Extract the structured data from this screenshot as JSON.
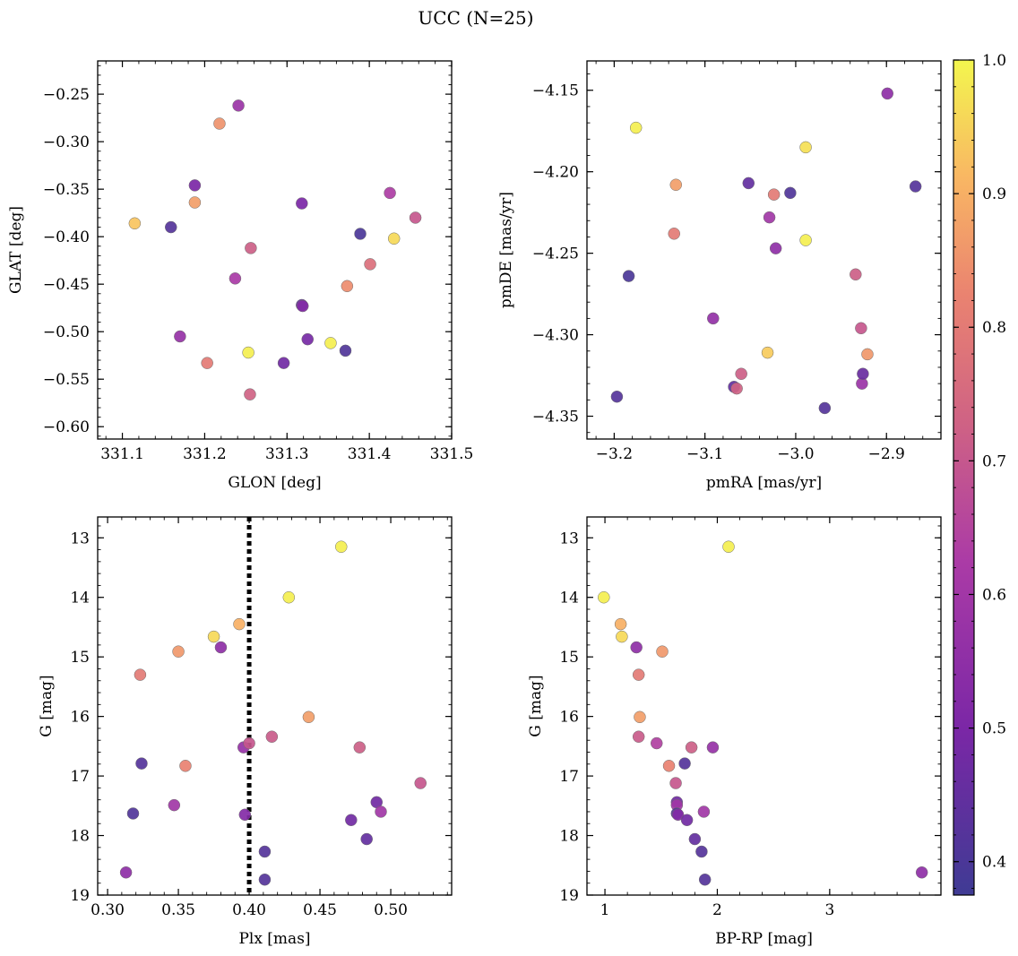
{
  "figure": {
    "title": "UCC (N=25)"
  },
  "chart_data": [
    {
      "type": "scatter",
      "xlabel": "GLON [deg]",
      "ylabel": "GLAT [deg]",
      "xlim": [
        331.07,
        331.5
      ],
      "ylim": [
        -0.613,
        -0.215
      ],
      "xticks": [
        331.1,
        331.2,
        331.3,
        331.4,
        331.5
      ],
      "xtick_labels": [
        "331.1",
        "331.2",
        "331.3",
        "331.4",
        "331.5"
      ],
      "yticks": [
        -0.6,
        -0.55,
        -0.5,
        -0.45,
        -0.4,
        -0.35,
        -0.3,
        -0.25
      ],
      "ytick_labels": [
        "−0.60",
        "−0.55",
        "−0.50",
        "−0.45",
        "−0.40",
        "−0.35",
        "−0.30",
        "−0.25"
      ],
      "x_inverted": false,
      "y_inverted": false,
      "points": [
        {
          "x": 331.115,
          "y": -0.386,
          "c": 0.93
        },
        {
          "x": 331.159,
          "y": -0.39,
          "c": 0.42
        },
        {
          "x": 331.17,
          "y": -0.505,
          "c": 0.57
        },
        {
          "x": 331.188,
          "y": -0.346,
          "c": 0.5
        },
        {
          "x": 331.188,
          "y": -0.364,
          "c": 0.87
        },
        {
          "x": 331.203,
          "y": -0.533,
          "c": 0.8
        },
        {
          "x": 331.218,
          "y": -0.281,
          "c": 0.85
        },
        {
          "x": 331.237,
          "y": -0.444,
          "c": 0.62
        },
        {
          "x": 331.241,
          "y": -0.262,
          "c": 0.58
        },
        {
          "x": 331.253,
          "y": -0.522,
          "c": 0.99
        },
        {
          "x": 331.255,
          "y": -0.566,
          "c": 0.73
        },
        {
          "x": 331.256,
          "y": -0.412,
          "c": 0.72
        },
        {
          "x": 331.296,
          "y": -0.533,
          "c": 0.48
        },
        {
          "x": 331.318,
          "y": -0.365,
          "c": 0.5
        },
        {
          "x": 331.318,
          "y": -0.472,
          "c": 0.45
        },
        {
          "x": 331.319,
          "y": -0.473,
          "c": 0.52
        },
        {
          "x": 331.325,
          "y": -0.508,
          "c": 0.49
        },
        {
          "x": 331.353,
          "y": -0.512,
          "c": 0.99
        },
        {
          "x": 331.371,
          "y": -0.52,
          "c": 0.41
        },
        {
          "x": 331.373,
          "y": -0.452,
          "c": 0.84
        },
        {
          "x": 331.389,
          "y": -0.397,
          "c": 0.4
        },
        {
          "x": 331.401,
          "y": -0.429,
          "c": 0.77
        },
        {
          "x": 331.425,
          "y": -0.354,
          "c": 0.63
        },
        {
          "x": 331.43,
          "y": -0.402,
          "c": 0.96
        },
        {
          "x": 331.456,
          "y": -0.38,
          "c": 0.7
        }
      ]
    },
    {
      "type": "scatter",
      "xlabel": "pmRA [mas/yr]",
      "ylabel": "pmDE [mas/yr]",
      "xlim": [
        -3.23,
        -2.84
      ],
      "ylim": [
        -4.364,
        -4.132
      ],
      "xticks": [
        -3.2,
        -3.1,
        -3.0,
        -2.9
      ],
      "xtick_labels": [
        "−3.2",
        "−3.1",
        "−3.0",
        "−2.9"
      ],
      "yticks": [
        -4.35,
        -4.3,
        -4.25,
        -4.2,
        -4.15
      ],
      "ytick_labels": [
        "−4.35",
        "−4.30",
        "−4.25",
        "−4.20",
        "−4.15"
      ],
      "x_inverted": false,
      "y_inverted": false,
      "points": [
        {
          "x": -3.197,
          "y": -4.338,
          "c": 0.42
        },
        {
          "x": -3.184,
          "y": -4.264,
          "c": 0.4
        },
        {
          "x": -3.176,
          "y": -4.173,
          "c": 0.99
        },
        {
          "x": -3.134,
          "y": -4.238,
          "c": 0.8
        },
        {
          "x": -3.132,
          "y": -4.208,
          "c": 0.87
        },
        {
          "x": -3.091,
          "y": -4.29,
          "c": 0.56
        },
        {
          "x": -3.068,
          "y": -4.332,
          "c": 0.45
        },
        {
          "x": -3.065,
          "y": -4.333,
          "c": 0.73
        },
        {
          "x": -3.06,
          "y": -4.324,
          "c": 0.72
        },
        {
          "x": -3.052,
          "y": -4.207,
          "c": 0.45
        },
        {
          "x": -3.031,
          "y": -4.311,
          "c": 0.94
        },
        {
          "x": -3.029,
          "y": -4.228,
          "c": 0.6
        },
        {
          "x": -3.024,
          "y": -4.214,
          "c": 0.8
        },
        {
          "x": -3.022,
          "y": -4.247,
          "c": 0.55
        },
        {
          "x": -3.006,
          "y": -4.213,
          "c": 0.41
        },
        {
          "x": -2.989,
          "y": -4.185,
          "c": 0.97
        },
        {
          "x": -2.989,
          "y": -4.242,
          "c": 0.99
        },
        {
          "x": -2.968,
          "y": -4.345,
          "c": 0.42
        },
        {
          "x": -2.934,
          "y": -4.263,
          "c": 0.72
        },
        {
          "x": -2.928,
          "y": -4.296,
          "c": 0.7
        },
        {
          "x": -2.927,
          "y": -4.33,
          "c": 0.58
        },
        {
          "x": -2.926,
          "y": -4.324,
          "c": 0.46
        },
        {
          "x": -2.921,
          "y": -4.312,
          "c": 0.86
        },
        {
          "x": -2.899,
          "y": -4.152,
          "c": 0.55
        },
        {
          "x": -2.868,
          "y": -4.209,
          "c": 0.42
        }
      ]
    },
    {
      "type": "scatter",
      "xlabel": "Plx [mas]",
      "ylabel": "G [mag]",
      "xlim": [
        0.293,
        0.543
      ],
      "ylim": [
        12.65,
        19.0
      ],
      "xticks": [
        0.3,
        0.35,
        0.4,
        0.45,
        0.5
      ],
      "xtick_labels": [
        "0.30",
        "0.35",
        "0.40",
        "0.45",
        "0.50"
      ],
      "yticks": [
        13,
        14,
        15,
        16,
        17,
        18,
        19
      ],
      "ytick_labels": [
        "13",
        "14",
        "15",
        "16",
        "17",
        "18",
        "19"
      ],
      "x_inverted": false,
      "y_inverted": true,
      "vline": {
        "x": 0.4,
        "style": "dotted"
      },
      "points": [
        {
          "x": 0.313,
          "y": 18.62,
          "c": 0.55
        },
        {
          "x": 0.318,
          "y": 17.63,
          "c": 0.41
        },
        {
          "x": 0.323,
          "y": 15.3,
          "c": 0.8
        },
        {
          "x": 0.324,
          "y": 16.79,
          "c": 0.42
        },
        {
          "x": 0.347,
          "y": 17.49,
          "c": 0.6
        },
        {
          "x": 0.35,
          "y": 14.91,
          "c": 0.86
        },
        {
          "x": 0.355,
          "y": 16.83,
          "c": 0.82
        },
        {
          "x": 0.375,
          "y": 14.66,
          "c": 0.96
        },
        {
          "x": 0.38,
          "y": 14.84,
          "c": 0.55
        },
        {
          "x": 0.393,
          "y": 14.45,
          "c": 0.9
        },
        {
          "x": 0.396,
          "y": 16.52,
          "c": 0.57
        },
        {
          "x": 0.397,
          "y": 17.65,
          "c": 0.52
        },
        {
          "x": 0.4,
          "y": 16.45,
          "c": 0.7
        },
        {
          "x": 0.411,
          "y": 18.27,
          "c": 0.42
        },
        {
          "x": 0.411,
          "y": 18.74,
          "c": 0.42
        },
        {
          "x": 0.416,
          "y": 16.34,
          "c": 0.71
        },
        {
          "x": 0.428,
          "y": 14.0,
          "c": 0.99
        },
        {
          "x": 0.442,
          "y": 16.01,
          "c": 0.87
        },
        {
          "x": 0.465,
          "y": 13.15,
          "c": 0.99
        },
        {
          "x": 0.472,
          "y": 17.74,
          "c": 0.48
        },
        {
          "x": 0.478,
          "y": 16.52,
          "c": 0.72
        },
        {
          "x": 0.483,
          "y": 18.06,
          "c": 0.45
        },
        {
          "x": 0.49,
          "y": 17.44,
          "c": 0.48
        },
        {
          "x": 0.493,
          "y": 17.6,
          "c": 0.6
        },
        {
          "x": 0.521,
          "y": 17.12,
          "c": 0.7
        }
      ]
    },
    {
      "type": "scatter",
      "xlabel": "BP-RP [mag]",
      "ylabel": "G [mag]",
      "xlim": [
        0.84,
        3.99
      ],
      "ylim": [
        12.65,
        19.0
      ],
      "xticks": [
        1,
        2,
        3
      ],
      "xtick_labels": [
        "1",
        "2",
        "3"
      ],
      "yticks": [
        13,
        14,
        15,
        16,
        17,
        18,
        19
      ],
      "ytick_labels": [
        "13",
        "14",
        "15",
        "16",
        "17",
        "18",
        "19"
      ],
      "x_inverted": false,
      "y_inverted": true,
      "points": [
        {
          "x": 0.99,
          "y": 14.0,
          "c": 0.99
        },
        {
          "x": 1.14,
          "y": 14.45,
          "c": 0.9
        },
        {
          "x": 1.15,
          "y": 14.66,
          "c": 0.96
        },
        {
          "x": 1.28,
          "y": 14.84,
          "c": 0.55
        },
        {
          "x": 1.3,
          "y": 15.3,
          "c": 0.8
        },
        {
          "x": 1.31,
          "y": 16.01,
          "c": 0.87
        },
        {
          "x": 1.3,
          "y": 16.34,
          "c": 0.71
        },
        {
          "x": 1.46,
          "y": 16.45,
          "c": 0.64
        },
        {
          "x": 1.51,
          "y": 14.91,
          "c": 0.86
        },
        {
          "x": 1.57,
          "y": 16.83,
          "c": 0.82
        },
        {
          "x": 1.63,
          "y": 17.12,
          "c": 0.7
        },
        {
          "x": 1.64,
          "y": 17.44,
          "c": 0.48
        },
        {
          "x": 1.64,
          "y": 17.49,
          "c": 0.6
        },
        {
          "x": 1.64,
          "y": 17.63,
          "c": 0.41
        },
        {
          "x": 1.65,
          "y": 17.65,
          "c": 0.52
        },
        {
          "x": 1.71,
          "y": 16.79,
          "c": 0.42
        },
        {
          "x": 1.73,
          "y": 17.74,
          "c": 0.48
        },
        {
          "x": 1.77,
          "y": 16.52,
          "c": 0.72
        },
        {
          "x": 1.8,
          "y": 18.06,
          "c": 0.45
        },
        {
          "x": 1.86,
          "y": 18.27,
          "c": 0.42
        },
        {
          "x": 1.88,
          "y": 17.6,
          "c": 0.6
        },
        {
          "x": 1.89,
          "y": 18.74,
          "c": 0.42
        },
        {
          "x": 1.96,
          "y": 16.52,
          "c": 0.57
        },
        {
          "x": 2.1,
          "y": 13.15,
          "c": 0.99
        },
        {
          "x": 3.82,
          "y": 18.62,
          "c": 0.55
        }
      ]
    }
  ],
  "colorbar": {
    "colormap": "plasma",
    "range": [
      0.375,
      1.0
    ],
    "ticks": [
      0.4,
      0.5,
      0.6,
      0.7,
      0.8,
      0.9,
      1.0
    ],
    "tick_labels": [
      "0.4",
      "0.5",
      "0.6",
      "0.7",
      "0.8",
      "0.9",
      "1.0"
    ]
  }
}
